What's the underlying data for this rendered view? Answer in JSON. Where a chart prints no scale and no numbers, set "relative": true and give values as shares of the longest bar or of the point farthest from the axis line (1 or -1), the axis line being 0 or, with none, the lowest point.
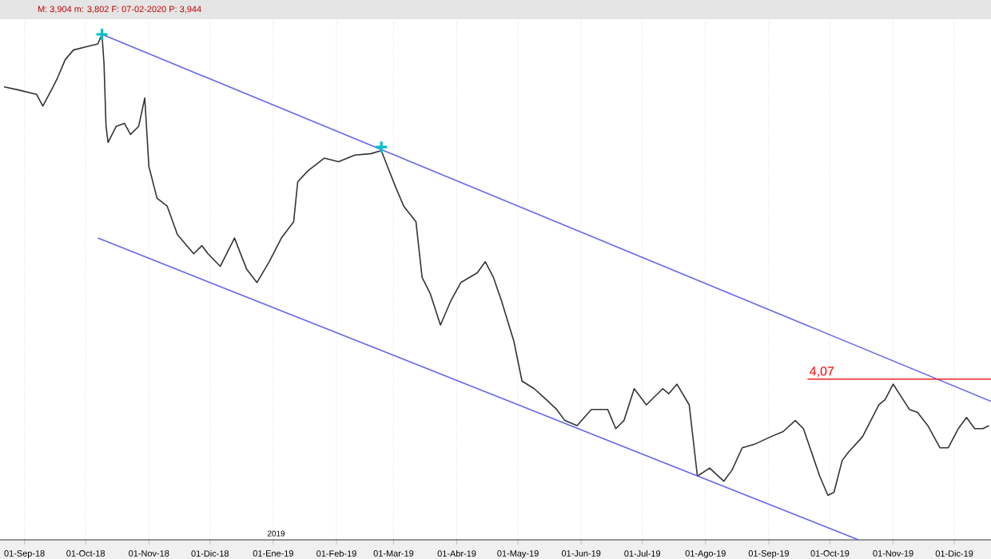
{
  "chart_data": {
    "type": "line",
    "relative": true,
    "grid": "x",
    "xlim": [
      "2018-08-20",
      "2019-12-19"
    ],
    "xticks": [
      {
        "value": "2018-09-01",
        "label": "01-Sep-18"
      },
      {
        "value": "2018-10-01",
        "label": "01-Oct-18"
      },
      {
        "value": "2018-11-01",
        "label": "01-Nov-18"
      },
      {
        "value": "2018-12-01",
        "label": "01-Dic-18"
      },
      {
        "value": "2019-01-01",
        "label": "01-Ene-19"
      },
      {
        "value": "2019-02-01",
        "label": "01-Feb-19"
      },
      {
        "value": "2019-03-01",
        "label": "01-Mar-19"
      },
      {
        "value": "2019-04-01",
        "label": "01-Abr-19"
      },
      {
        "value": "2019-05-01",
        "label": "01-May-19"
      },
      {
        "value": "2019-06-01",
        "label": "01-Jun-19"
      },
      {
        "value": "2019-07-01",
        "label": "01-Jul-19"
      },
      {
        "value": "2019-08-01",
        "label": "01-Ago-19"
      },
      {
        "value": "2019-09-01",
        "label": "01-Sep-19"
      },
      {
        "value": "2019-10-01",
        "label": "01-Oct-19"
      },
      {
        "value": "2019-11-01",
        "label": "01-Nov-19"
      },
      {
        "value": "2019-12-01",
        "label": "01-Dic-19"
      }
    ],
    "series": [
      {
        "type": "line",
        "color": "#333333",
        "x": [
          "2018-08-22",
          "2018-08-29",
          "2018-09-07",
          "2018-09-10",
          "2018-09-15",
          "2018-09-17",
          "2018-09-21",
          "2018-09-25",
          "2018-10-01",
          "2018-10-07",
          "2018-10-09",
          "2018-10-10",
          "2018-10-11",
          "2018-10-12",
          "2018-10-16",
          "2018-10-20",
          "2018-10-23",
          "2018-10-27",
          "2018-10-30",
          "2018-11-01",
          "2018-11-05",
          "2018-11-10",
          "2018-11-15",
          "2018-11-23",
          "2018-11-27",
          "2018-11-30",
          "2018-12-06",
          "2018-12-13",
          "2018-12-19",
          "2018-12-24",
          "2018-12-30",
          "2019-01-05",
          "2019-01-11",
          "2019-01-13",
          "2019-01-18",
          "2019-01-26",
          "2019-02-02",
          "2019-02-10",
          "2019-02-18",
          "2019-02-23",
          "2019-02-26",
          "2019-03-02",
          "2019-03-06",
          "2019-03-12",
          "2019-03-15",
          "2019-03-19",
          "2019-03-24",
          "2019-03-29",
          "2019-04-03",
          "2019-04-11",
          "2019-04-15",
          "2019-04-19",
          "2019-04-23",
          "2019-04-29",
          "2019-05-03",
          "2019-05-09",
          "2019-05-15",
          "2019-05-20",
          "2019-05-24",
          "2019-05-30",
          "2019-06-06",
          "2019-06-14",
          "2019-06-18",
          "2019-06-22",
          "2019-06-27",
          "2019-07-03",
          "2019-07-11",
          "2019-07-14",
          "2019-07-18",
          "2019-07-24",
          "2019-07-28",
          "2019-08-03",
          "2019-08-10",
          "2019-08-14",
          "2019-08-19",
          "2019-08-25",
          "2019-09-02",
          "2019-09-08",
          "2019-09-14",
          "2019-09-18",
          "2019-09-22",
          "2019-09-26",
          "2019-09-30",
          "2019-10-03",
          "2019-10-07",
          "2019-10-10",
          "2019-10-17",
          "2019-10-25",
          "2019-10-28",
          "2019-11-01",
          "2019-11-05",
          "2019-11-09",
          "2019-11-13",
          "2019-11-18",
          "2019-11-24",
          "2019-11-28",
          "2019-12-03",
          "2019-12-07",
          "2019-12-11",
          "2019-12-15",
          "2019-12-18"
        ],
        "values": [
          0.896,
          0.89,
          0.881,
          0.858,
          0.896,
          0.912,
          0.95,
          0.969,
          0.975,
          0.981,
          1.0,
          0.943,
          0.818,
          0.786,
          0.818,
          0.824,
          0.802,
          0.818,
          0.874,
          0.739,
          0.676,
          0.66,
          0.604,
          0.566,
          0.582,
          0.566,
          0.541,
          0.597,
          0.535,
          0.509,
          0.55,
          0.597,
          0.629,
          0.708,
          0.73,
          0.755,
          0.748,
          0.761,
          0.764,
          0.77,
          0.739,
          0.698,
          0.66,
          0.629,
          0.519,
          0.487,
          0.425,
          0.472,
          0.509,
          0.528,
          0.55,
          0.519,
          0.472,
          0.393,
          0.314,
          0.299,
          0.277,
          0.258,
          0.236,
          0.226,
          0.258,
          0.258,
          0.22,
          0.236,
          0.299,
          0.267,
          0.299,
          0.289,
          0.308,
          0.267,
          0.126,
          0.142,
          0.116,
          0.138,
          0.182,
          0.189,
          0.204,
          0.214,
          0.236,
          0.22,
          0.173,
          0.126,
          0.088,
          0.094,
          0.157,
          0.173,
          0.204,
          0.267,
          0.277,
          0.308,
          0.283,
          0.258,
          0.252,
          0.226,
          0.182,
          0.182,
          0.22,
          0.242,
          0.22,
          0.22,
          0.226
        ]
      },
      {
        "type": "line",
        "color": "#6666ee",
        "x": [
          "2018-10-09",
          "2019-12-19"
        ],
        "values": [
          1.0,
          0.274
        ]
      },
      {
        "type": "line",
        "color": "#6666ee",
        "x": [
          "2018-10-07",
          "2019-10-15"
        ],
        "values": [
          0.597,
          0.0
        ]
      },
      {
        "type": "line",
        "color": "#ee2222",
        "x": [
          "2019-09-20",
          "2019-12-19"
        ],
        "values": [
          0.318,
          0.318
        ]
      },
      {
        "type": "scatter",
        "color": "#00c0c8",
        "marker": "cross",
        "x": [
          "2018-10-09",
          "2019-02-23"
        ],
        "values": [
          1.0,
          0.777
        ]
      }
    ],
    "annotations": [
      "M: 3,904  m: 3,802  F: 07-02-2020  P: 3,944",
      {
        "text": "4,07",
        "x": "2019-09-20",
        "y": 0.318
      },
      "2019"
    ]
  }
}
